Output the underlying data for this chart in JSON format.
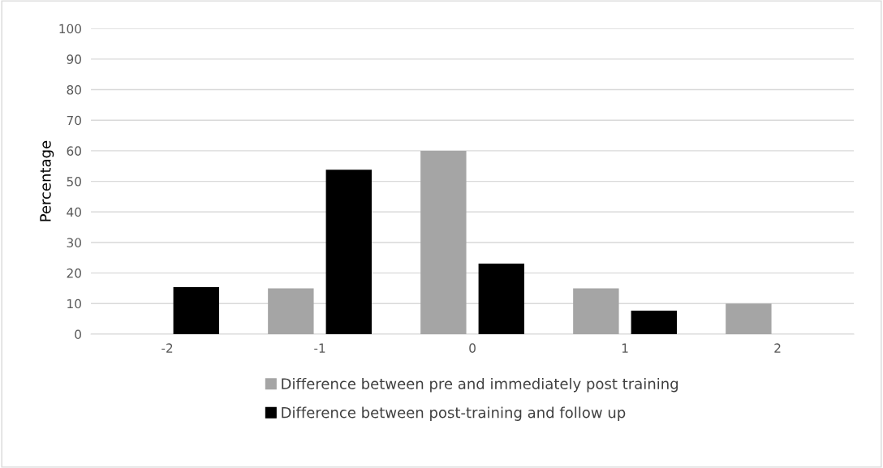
{
  "chart_data": {
    "type": "bar",
    "ylabel": "Percentage",
    "categories": [
      "-2",
      "-1",
      "0",
      "1",
      "2"
    ],
    "series": [
      {
        "name": "Difference between pre and immediately post training",
        "color": "#a5a5a5",
        "values": [
          0,
          15,
          60,
          15,
          10
        ]
      },
      {
        "name": "Difference between post-training and follow up",
        "color": "#000000",
        "values": [
          15.4,
          53.8,
          23.1,
          7.7,
          0
        ]
      }
    ],
    "ylim": [
      0,
      100
    ],
    "yticks": [
      0,
      10,
      20,
      30,
      40,
      50,
      60,
      70,
      80,
      90,
      100
    ],
    "grid": "y",
    "legend": "bottom"
  }
}
